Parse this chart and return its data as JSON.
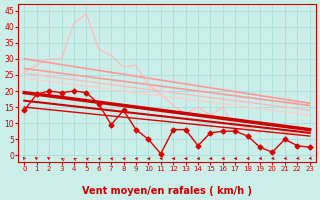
{
  "bg_color": "#cceee8",
  "grid_color": "#aadddd",
  "xlabel": "Vent moyen/en rafales ( km/h )",
  "xlabel_color": "#cc0000",
  "xlabel_fontsize": 7,
  "tick_color": "#cc0000",
  "xticks": [
    0,
    1,
    2,
    3,
    4,
    5,
    6,
    7,
    8,
    9,
    10,
    11,
    12,
    13,
    14,
    15,
    16,
    17,
    18,
    19,
    20,
    21,
    22,
    23
  ],
  "yticks": [
    0,
    5,
    10,
    15,
    20,
    25,
    30,
    35,
    40,
    45
  ],
  "ylim": [
    -2,
    47
  ],
  "xlim": [
    -0.5,
    23.5
  ],
  "line_light_pink_nomarker": {
    "x": [
      0,
      1,
      2,
      3,
      4,
      5,
      6,
      7,
      8,
      9,
      10,
      11,
      12,
      13,
      14,
      15,
      16,
      17,
      18,
      19,
      20,
      21,
      22,
      23
    ],
    "y": [
      26.0,
      28.0,
      30.0,
      30.0,
      41.0,
      44.0,
      33.0,
      31.0,
      27.5,
      28.0,
      22.0,
      19.0,
      15.5,
      13.0,
      15.0,
      12.5,
      15.0,
      8.0,
      9.0,
      7.0,
      10.0,
      7.0,
      7.0,
      7.0
    ],
    "color": "#ffbbbb",
    "linewidth": 0.9
  },
  "line_pink_slope1": {
    "x": [
      0,
      1,
      2,
      3,
      4,
      5,
      6,
      7,
      8,
      9,
      10,
      11,
      12,
      13,
      14,
      15,
      16,
      17,
      18,
      19,
      20,
      21,
      22,
      23
    ],
    "y": [
      30.0,
      29.4,
      28.8,
      28.2,
      27.6,
      27.0,
      26.4,
      25.8,
      25.2,
      24.6,
      24.0,
      23.4,
      22.8,
      22.2,
      21.6,
      21.0,
      20.4,
      19.8,
      19.2,
      18.6,
      18.0,
      17.4,
      16.8,
      16.2
    ],
    "color": "#ff9999",
    "linewidth": 1.2
  },
  "line_pink_slope2": {
    "x": [
      0,
      1,
      2,
      3,
      4,
      5,
      6,
      7,
      8,
      9,
      10,
      11,
      12,
      13,
      14,
      15,
      16,
      17,
      18,
      19,
      20,
      21,
      22,
      23
    ],
    "y": [
      27.0,
      26.5,
      26.0,
      25.5,
      25.0,
      24.5,
      24.0,
      23.5,
      23.0,
      22.5,
      22.0,
      21.5,
      21.0,
      20.5,
      20.0,
      19.5,
      19.0,
      18.5,
      18.0,
      17.5,
      17.0,
      16.5,
      16.0,
      15.5
    ],
    "color": "#ff9999",
    "linewidth": 1.2
  },
  "line_pink_slope3": {
    "x": [
      0,
      1,
      2,
      3,
      4,
      5,
      6,
      7,
      8,
      9,
      10,
      11,
      12,
      13,
      14,
      15,
      16,
      17,
      18,
      19,
      20,
      21,
      22,
      23
    ],
    "y": [
      25.5,
      25.0,
      24.5,
      24.0,
      23.5,
      23.0,
      22.5,
      22.0,
      21.5,
      21.0,
      20.5,
      20.0,
      19.5,
      19.0,
      18.5,
      18.0,
      17.5,
      17.0,
      16.5,
      16.0,
      15.5,
      15.0,
      14.5,
      14.0
    ],
    "color": "#ffbbbb",
    "linewidth": 1.0
  },
  "line_pink_slope4": {
    "x": [
      0,
      1,
      2,
      3,
      4,
      5,
      6,
      7,
      8,
      9,
      10,
      11,
      12,
      13,
      14,
      15,
      16,
      17,
      18,
      19,
      20,
      21,
      22,
      23
    ],
    "y": [
      24.0,
      23.5,
      23.0,
      22.5,
      22.0,
      21.5,
      21.0,
      20.5,
      20.0,
      19.5,
      19.0,
      18.5,
      18.0,
      17.5,
      17.0,
      16.5,
      16.0,
      15.5,
      15.0,
      14.5,
      14.0,
      13.5,
      13.0,
      12.5
    ],
    "color": "#ffcccc",
    "linewidth": 1.0
  },
  "line_red_marker": {
    "x": [
      0,
      1,
      2,
      3,
      4,
      5,
      6,
      7,
      8,
      9,
      10,
      11,
      12,
      13,
      14,
      15,
      16,
      17,
      18,
      19,
      20,
      21,
      22,
      23
    ],
    "y": [
      14.0,
      19.0,
      20.0,
      19.5,
      20.0,
      19.5,
      16.0,
      9.5,
      14.0,
      8.0,
      5.0,
      0.5,
      8.0,
      8.0,
      3.0,
      7.0,
      7.5,
      7.5,
      6.0,
      2.5,
      1.0,
      5.0,
      3.0,
      2.5
    ],
    "color": "#dd0000",
    "linewidth": 1.0,
    "marker": "D",
    "markersize": 2.5
  },
  "line_red_thick": {
    "x": [
      0,
      23
    ],
    "y": [
      19.5,
      8.0
    ],
    "color": "#cc0000",
    "linewidth": 2.5
  },
  "line_red_medium": {
    "x": [
      0,
      23
    ],
    "y": [
      17.0,
      7.0
    ],
    "color": "#cc0000",
    "linewidth": 1.5
  },
  "line_red_thin": {
    "x": [
      0,
      23
    ],
    "y": [
      15.0,
      6.0
    ],
    "color": "#dd0000",
    "linewidth": 1.0
  },
  "arrow_angles": [
    200,
    205,
    210,
    220,
    230,
    235,
    242,
    248,
    253,
    258,
    263,
    267,
    270,
    270,
    272,
    272,
    275,
    278,
    280,
    283,
    287,
    290,
    293,
    297
  ],
  "arrow_color": "#cc0000"
}
